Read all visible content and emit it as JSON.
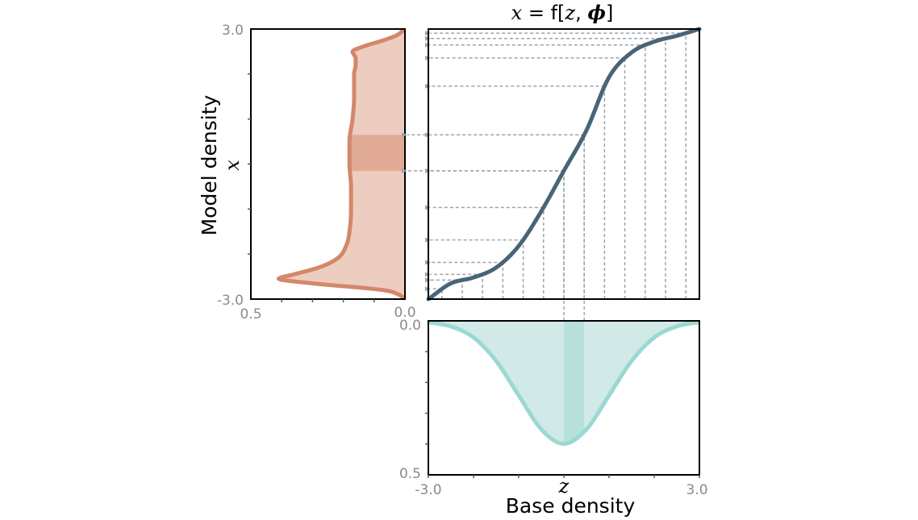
{
  "title": {
    "lhs": "x",
    "eq": " = ",
    "fn": "f",
    "open": "[",
    "arg1": "z",
    "comma": ", ",
    "arg2": "ϕ",
    "close": "]"
  },
  "left_panel": {
    "ylabel_text": "Model density",
    "ylabel_var": "x",
    "y_ticks": [
      "3.0",
      "-3.0"
    ],
    "x_ticks": [
      "0.5",
      "0.0"
    ],
    "fill_color": "#EDCDC0",
    "band_color": "#E0AA95",
    "line_color": "#D4876A"
  },
  "bottom_panel": {
    "xlabel_text": "Base density",
    "xlabel_var": "z",
    "x_ticks": [
      "-3.0",
      "3.0"
    ],
    "y_ticks": [
      "0.0",
      "0.5"
    ],
    "fill_color": "#D1EAE7",
    "band_color": "#B5E0DB",
    "line_color": "#9BD8D2"
  },
  "main_panel": {
    "line_color": "#476576",
    "guide_color": "#9BA6AA"
  },
  "chart_data": {
    "type": "line",
    "function": "x = f[z, phi]",
    "z_range": [
      -3.0,
      3.0
    ],
    "x_range": [
      -3.0,
      3.0
    ],
    "base_density_range": [
      0.0,
      0.5
    ],
    "model_density_range": [
      0.0,
      0.5
    ],
    "mapping": {
      "z": [
        -3.0,
        -2.5,
        -2.0,
        -1.5,
        -1.0,
        -0.5,
        0.0,
        0.5,
        1.0,
        1.5,
        2.0,
        2.5,
        3.0
      ],
      "x": [
        -3.0,
        -2.65,
        -2.52,
        -2.3,
        -1.82,
        -1.05,
        -0.15,
        0.75,
        1.93,
        2.48,
        2.72,
        2.85,
        3.0
      ]
    },
    "guide_z": [
      -2.7,
      -2.25,
      -1.8,
      -1.35,
      -0.9,
      -0.45,
      0.0,
      0.45,
      0.9,
      1.35,
      1.8,
      2.25,
      2.7
    ],
    "highlight_z": [
      0.0,
      0.45
    ],
    "base_density": {
      "z": [
        -3.0,
        -2.5,
        -2.0,
        -1.5,
        -1.0,
        -0.5,
        0.0,
        0.5,
        1.0,
        1.5,
        2.0,
        2.5,
        3.0
      ],
      "p": [
        0.004,
        0.018,
        0.054,
        0.13,
        0.242,
        0.352,
        0.399,
        0.352,
        0.242,
        0.13,
        0.054,
        0.018,
        0.004
      ]
    },
    "model_density": {
      "x": [
        -3.0,
        -2.9,
        -2.8,
        -2.65,
        -2.55,
        -2.45,
        -2.3,
        -2.1,
        -1.8,
        -1.5,
        -1.0,
        -0.5,
        0.0,
        0.5,
        1.0,
        1.5,
        2.0,
        2.2,
        2.35,
        2.5,
        2.6,
        2.75,
        2.85,
        3.0
      ],
      "p": [
        0.0,
        0.02,
        0.07,
        0.3,
        0.41,
        0.36,
        0.28,
        0.22,
        0.19,
        0.18,
        0.175,
        0.175,
        0.18,
        0.18,
        0.17,
        0.165,
        0.165,
        0.16,
        0.16,
        0.17,
        0.14,
        0.07,
        0.03,
        0.0
      ]
    }
  }
}
